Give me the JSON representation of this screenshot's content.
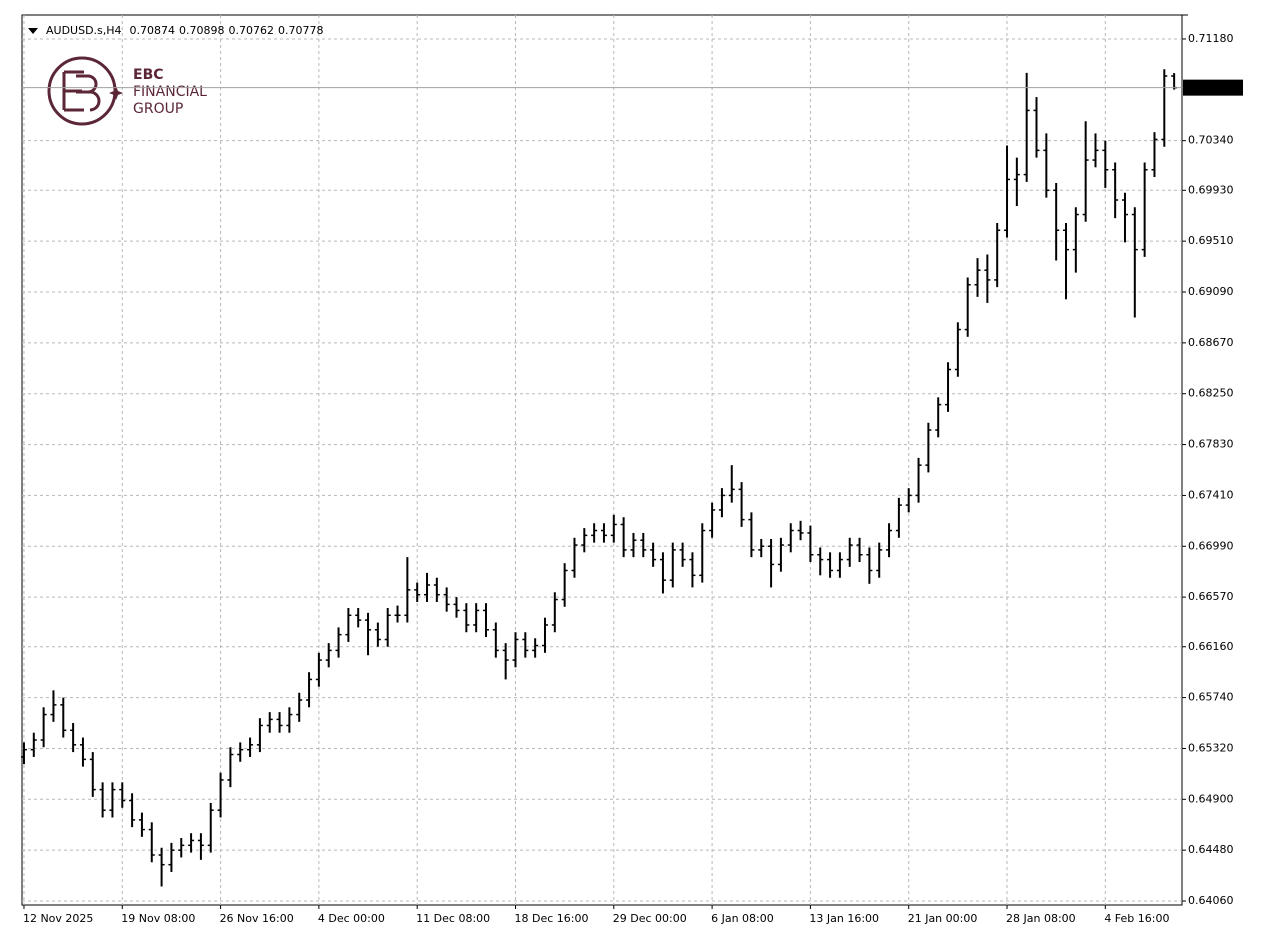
{
  "chart_data": {
    "type": "ohlc",
    "title": "AUDUSD.s,H4",
    "color": "#000000",
    "grid": true,
    "ylim": [
      0.64027,
      0.71378
    ],
    "yticks": [
      {
        "value": 0.7118,
        "label": "0.71180"
      },
      {
        "value": 0.7034,
        "label": "0.70340"
      },
      {
        "value": 0.6993,
        "label": "0.69930"
      },
      {
        "value": 0.6951,
        "label": "0.69510"
      },
      {
        "value": 0.6909,
        "label": "0.69090"
      },
      {
        "value": 0.6867,
        "label": "0.68670"
      },
      {
        "value": 0.6825,
        "label": "0.68250"
      },
      {
        "value": 0.6783,
        "label": "0.67830"
      },
      {
        "value": 0.6741,
        "label": "0.67410"
      },
      {
        "value": 0.6699,
        "label": "0.66990"
      },
      {
        "value": 0.6657,
        "label": "0.66570"
      },
      {
        "value": 0.6616,
        "label": "0.66160"
      },
      {
        "value": 0.6574,
        "label": "0.65740"
      },
      {
        "value": 0.6532,
        "label": "0.65320"
      },
      {
        "value": 0.649,
        "label": "0.64900"
      },
      {
        "value": 0.6448,
        "label": "0.64480"
      },
      {
        "value": 0.6406,
        "label": "0.64060"
      }
    ],
    "xlim": [
      -0.2,
      117.8
    ],
    "xticks": [
      {
        "value": 0,
        "label": "12 Nov 2025"
      },
      {
        "value": 10,
        "label": "19 Nov 08:00"
      },
      {
        "value": 20,
        "label": "26 Nov 16:00"
      },
      {
        "value": 30,
        "label": "4 Dec 00:00"
      },
      {
        "value": 40,
        "label": "11 Dec 08:00"
      },
      {
        "value": 50,
        "label": "18 Dec 16:00"
      },
      {
        "value": 60,
        "label": "29 Dec 00:00"
      },
      {
        "value": 70,
        "label": "6 Jan 08:00"
      },
      {
        "value": 80,
        "label": "13 Jan 16:00"
      },
      {
        "value": 90,
        "label": "21 Jan 00:00"
      },
      {
        "value": 100,
        "label": "28 Jan 08:00"
      },
      {
        "value": 110,
        "label": "4 Feb 16:00"
      }
    ],
    "bars": [
      [
        0.6525,
        0.6537,
        0.6519,
        0.6531
      ],
      [
        0.6531,
        0.6545,
        0.6525,
        0.6539
      ],
      [
        0.6539,
        0.6566,
        0.6533,
        0.656
      ],
      [
        0.656,
        0.658,
        0.6554,
        0.6568
      ],
      [
        0.6568,
        0.6574,
        0.6541,
        0.6547
      ],
      [
        0.6547,
        0.6553,
        0.6529,
        0.6535
      ],
      [
        0.6535,
        0.6541,
        0.6517,
        0.6523
      ],
      [
        0.6523,
        0.6529,
        0.6492,
        0.6498
      ],
      [
        0.6498,
        0.6504,
        0.6475,
        0.6481
      ],
      [
        0.6481,
        0.6504,
        0.6475,
        0.6498
      ],
      [
        0.6498,
        0.6504,
        0.6483,
        0.6489
      ],
      [
        0.6489,
        0.6495,
        0.6467,
        0.6473
      ],
      [
        0.6473,
        0.6479,
        0.6459,
        0.6465
      ],
      [
        0.6465,
        0.6471,
        0.6438,
        0.6444
      ],
      [
        0.6444,
        0.645,
        0.6418,
        0.6436
      ],
      [
        0.6436,
        0.6454,
        0.643,
        0.6448
      ],
      [
        0.6448,
        0.6458,
        0.6442,
        0.6452
      ],
      [
        0.6452,
        0.6462,
        0.6446,
        0.6456
      ],
      [
        0.6456,
        0.6462,
        0.644,
        0.6452
      ],
      [
        0.6452,
        0.6487,
        0.6446,
        0.6481
      ],
      [
        0.6481,
        0.6512,
        0.6475,
        0.6506
      ],
      [
        0.6506,
        0.6533,
        0.65,
        0.6527
      ],
      [
        0.6527,
        0.6537,
        0.6521,
        0.6531
      ],
      [
        0.6531,
        0.6541,
        0.6525,
        0.6535
      ],
      [
        0.6535,
        0.6557,
        0.6529,
        0.6551
      ],
      [
        0.6551,
        0.6562,
        0.6545,
        0.6556
      ],
      [
        0.6556,
        0.6562,
        0.6545,
        0.6551
      ],
      [
        0.6551,
        0.6566,
        0.6545,
        0.656
      ],
      [
        0.656,
        0.6578,
        0.6554,
        0.6572
      ],
      [
        0.6572,
        0.6595,
        0.6566,
        0.6589
      ],
      [
        0.6589,
        0.6611,
        0.6583,
        0.6605
      ],
      [
        0.6605,
        0.6619,
        0.6599,
        0.6613
      ],
      [
        0.6613,
        0.6632,
        0.6607,
        0.6626
      ],
      [
        0.6626,
        0.6648,
        0.662,
        0.6642
      ],
      [
        0.6642,
        0.6648,
        0.6632,
        0.6638
      ],
      [
        0.6638,
        0.6644,
        0.6609,
        0.663
      ],
      [
        0.663,
        0.6636,
        0.6616,
        0.6622
      ],
      [
        0.6622,
        0.6648,
        0.6616,
        0.6642
      ],
      [
        0.6642,
        0.665,
        0.6636,
        0.6642
      ],
      [
        0.6642,
        0.669,
        0.6636,
        0.6663
      ],
      [
        0.6663,
        0.6669,
        0.6653,
        0.6659
      ],
      [
        0.6659,
        0.6677,
        0.6653,
        0.6667
      ],
      [
        0.6667,
        0.6673,
        0.6653,
        0.6659
      ],
      [
        0.6659,
        0.6665,
        0.6645,
        0.6651
      ],
      [
        0.6651,
        0.6657,
        0.664,
        0.6646
      ],
      [
        0.6646,
        0.6652,
        0.6628,
        0.6634
      ],
      [
        0.6634,
        0.6652,
        0.6628,
        0.6646
      ],
      [
        0.6646,
        0.6652,
        0.6624,
        0.663
      ],
      [
        0.663,
        0.6636,
        0.6607,
        0.6613
      ],
      [
        0.6613,
        0.6619,
        0.6589,
        0.6605
      ],
      [
        0.6605,
        0.6628,
        0.6599,
        0.6622
      ],
      [
        0.6622,
        0.6628,
        0.6607,
        0.6613
      ],
      [
        0.6613,
        0.6623,
        0.6607,
        0.6617
      ],
      [
        0.6617,
        0.664,
        0.6611,
        0.6634
      ],
      [
        0.6634,
        0.6661,
        0.6628,
        0.6655
      ],
      [
        0.6655,
        0.6685,
        0.6649,
        0.6679
      ],
      [
        0.6679,
        0.6706,
        0.6673,
        0.67
      ],
      [
        0.67,
        0.6714,
        0.6694,
        0.6708
      ],
      [
        0.6708,
        0.6718,
        0.6702,
        0.6712
      ],
      [
        0.6712,
        0.6718,
        0.6702,
        0.6708
      ],
      [
        0.6708,
        0.6725,
        0.6702,
        0.6717
      ],
      [
        0.6717,
        0.6723,
        0.669,
        0.6696
      ],
      [
        0.6696,
        0.671,
        0.669,
        0.6704
      ],
      [
        0.6704,
        0.671,
        0.669,
        0.6696
      ],
      [
        0.6696,
        0.6702,
        0.6682,
        0.6688
      ],
      [
        0.6688,
        0.6694,
        0.666,
        0.6671
      ],
      [
        0.6671,
        0.6702,
        0.6665,
        0.6696
      ],
      [
        0.6696,
        0.6702,
        0.6682,
        0.6688
      ],
      [
        0.6688,
        0.6694,
        0.6665,
        0.6675
      ],
      [
        0.6675,
        0.6718,
        0.6669,
        0.6712
      ],
      [
        0.6712,
        0.6735,
        0.6706,
        0.6729
      ],
      [
        0.6729,
        0.6747,
        0.6723,
        0.6741
      ],
      [
        0.6741,
        0.6766,
        0.6735,
        0.6746
      ],
      [
        0.6746,
        0.6752,
        0.6715,
        0.6721
      ],
      [
        0.6721,
        0.6727,
        0.669,
        0.6696
      ],
      [
        0.6696,
        0.6705,
        0.669,
        0.6699
      ],
      [
        0.6699,
        0.6705,
        0.6665,
        0.6684
      ],
      [
        0.6684,
        0.6706,
        0.6678,
        0.67
      ],
      [
        0.67,
        0.6718,
        0.6694,
        0.6712
      ],
      [
        0.6712,
        0.672,
        0.6704,
        0.671
      ],
      [
        0.671,
        0.6716,
        0.6686,
        0.6692
      ],
      [
        0.6692,
        0.6698,
        0.6675,
        0.6688
      ],
      [
        0.6688,
        0.6694,
        0.6673,
        0.6679
      ],
      [
        0.6679,
        0.6694,
        0.6673,
        0.6688
      ],
      [
        0.6688,
        0.6706,
        0.6682,
        0.67
      ],
      [
        0.67,
        0.6706,
        0.6686,
        0.6692
      ],
      [
        0.6692,
        0.6698,
        0.6668,
        0.6679
      ],
      [
        0.6679,
        0.6702,
        0.6673,
        0.6696
      ],
      [
        0.6696,
        0.6718,
        0.669,
        0.6712
      ],
      [
        0.6712,
        0.6739,
        0.6706,
        0.6733
      ],
      [
        0.6733,
        0.6747,
        0.6727,
        0.6741
      ],
      [
        0.6741,
        0.6772,
        0.6735,
        0.6766
      ],
      [
        0.6766,
        0.6801,
        0.676,
        0.6795
      ],
      [
        0.6795,
        0.6822,
        0.6789,
        0.6816
      ],
      [
        0.6816,
        0.6851,
        0.681,
        0.6845
      ],
      [
        0.6845,
        0.6884,
        0.6839,
        0.6878
      ],
      [
        0.6878,
        0.6921,
        0.6872,
        0.6915
      ],
      [
        0.6915,
        0.6937,
        0.6905,
        0.6927
      ],
      [
        0.6927,
        0.694,
        0.69,
        0.6919
      ],
      [
        0.6919,
        0.6966,
        0.6913,
        0.696
      ],
      [
        0.696,
        0.703,
        0.6954,
        0.7002
      ],
      [
        0.7002,
        0.702,
        0.698,
        0.7006
      ],
      [
        0.7006,
        0.709,
        0.7,
        0.7059
      ],
      [
        0.7059,
        0.707,
        0.702,
        0.7026
      ],
      [
        0.7026,
        0.704,
        0.6987,
        0.6993
      ],
      [
        0.6993,
        0.6999,
        0.6935,
        0.696
      ],
      [
        0.696,
        0.6966,
        0.6903,
        0.6944
      ],
      [
        0.6944,
        0.6979,
        0.6925,
        0.6973
      ],
      [
        0.6973,
        0.705,
        0.6967,
        0.7018
      ],
      [
        0.7018,
        0.704,
        0.7012,
        0.7026
      ],
      [
        0.7026,
        0.7034,
        0.6995,
        0.701
      ],
      [
        0.701,
        0.7016,
        0.697,
        0.6985
      ],
      [
        0.6985,
        0.6991,
        0.695,
        0.6973
      ],
      [
        0.6973,
        0.6979,
        0.6888,
        0.6944
      ],
      [
        0.6944,
        0.7016,
        0.6938,
        0.701
      ],
      [
        0.701,
        0.7041,
        0.7004,
        0.7035
      ],
      [
        0.7035,
        0.7093,
        0.7029,
        0.70874
      ],
      [
        0.70874,
        0.70898,
        0.70762,
        0.70778
      ]
    ]
  },
  "logo": {
    "line1": "EBC",
    "line2": "FINANCIAL",
    "line3": "GROUP"
  }
}
